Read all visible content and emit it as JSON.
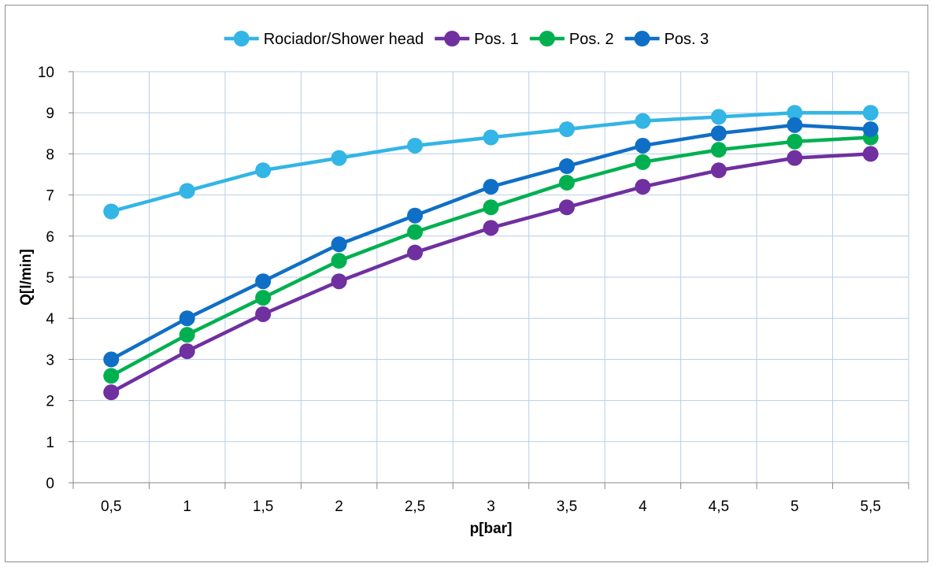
{
  "chart_data": {
    "type": "line",
    "title": "",
    "xlabel": "p[bar]",
    "ylabel": "Q[l/min]",
    "categories": [
      "0,5",
      "1",
      "1,5",
      "2",
      "2,5",
      "3",
      "3,5",
      "4",
      "4,5",
      "5",
      "5,5"
    ],
    "ylim": [
      0,
      10
    ],
    "yticks": [
      "0",
      "1",
      "2",
      "3",
      "4",
      "5",
      "6",
      "7",
      "8",
      "9",
      "10"
    ],
    "grid": true,
    "legend_position": "top",
    "series": [
      {
        "name": "Rociador/Shower head",
        "color": "#33B5E5",
        "values": [
          6.6,
          7.1,
          7.6,
          7.9,
          8.2,
          8.4,
          8.6,
          8.8,
          8.9,
          9.0,
          9.0
        ]
      },
      {
        "name": "Pos. 1",
        "color": "#7030A0",
        "values": [
          2.2,
          3.2,
          4.1,
          4.9,
          5.6,
          6.2,
          6.7,
          7.2,
          7.6,
          7.9,
          8.0
        ]
      },
      {
        "name": "Pos. 2",
        "color": "#00B050",
        "values": [
          2.6,
          3.6,
          4.5,
          5.4,
          6.1,
          6.7,
          7.3,
          7.8,
          8.1,
          8.3,
          8.4
        ]
      },
      {
        "name": "Pos. 3",
        "color": "#0F6FC6",
        "values": [
          3.0,
          4.0,
          4.9,
          5.8,
          6.5,
          7.2,
          7.7,
          8.2,
          8.5,
          8.7,
          8.6
        ]
      }
    ]
  }
}
